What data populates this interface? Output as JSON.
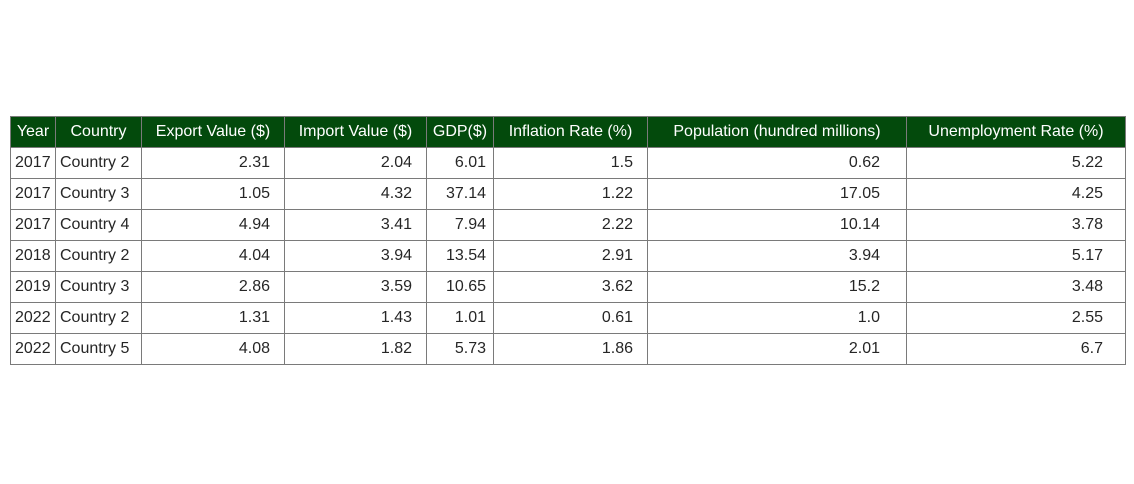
{
  "chart_data": {
    "type": "table",
    "header_color": "#034a0c",
    "columns": [
      "Year",
      "Country",
      "Export Value ($)",
      "Import Value ($)",
      "GDP($)",
      "Inflation Rate (%)",
      "Population (hundred millions)",
      "Unemployment Rate (%)"
    ],
    "rows": [
      [
        "2017",
        "Country 2",
        "2.31",
        "2.04",
        "6.01",
        "1.5",
        "0.62",
        "5.22"
      ],
      [
        "2017",
        "Country 3",
        "1.05",
        "4.32",
        "37.14",
        "1.22",
        "17.05",
        "4.25"
      ],
      [
        "2017",
        "Country 4",
        "4.94",
        "3.41",
        "7.94",
        "2.22",
        "10.14",
        "3.78"
      ],
      [
        "2018",
        "Country 2",
        "4.04",
        "3.94",
        "13.54",
        "2.91",
        "3.94",
        "5.17"
      ],
      [
        "2019",
        "Country 3",
        "2.86",
        "3.59",
        "10.65",
        "3.62",
        "15.2",
        "3.48"
      ],
      [
        "2022",
        "Country 2",
        "1.31",
        "1.43",
        "1.01",
        "0.61",
        "1.0",
        "2.55"
      ],
      [
        "2022",
        "Country 5",
        "4.08",
        "1.82",
        "5.73",
        "1.86",
        "2.01",
        "6.7"
      ]
    ]
  }
}
